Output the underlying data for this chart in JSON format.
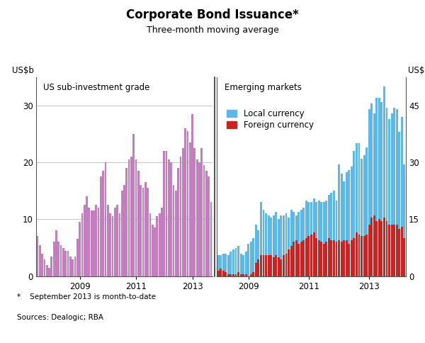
{
  "title": "Corporate Bond Issuance*",
  "subtitle": "Three-month moving average",
  "footnote": "*    September 2013 is month-to-date",
  "sources": "Sources: Dealogic; RBA",
  "left_ylabel": "US$b",
  "right_ylabel": "US$b",
  "left_panel_title": "US sub-investment grade",
  "right_panel_title": "Emerging markets",
  "legend_local": "Local currency",
  "legend_foreign": "Foreign currency",
  "left_ylim": [
    0,
    35
  ],
  "left_yticks": [
    0,
    10,
    20,
    30
  ],
  "right_ylim": [
    0,
    52.5
  ],
  "right_yticks": [
    0,
    15,
    30,
    45
  ],
  "purple_color": "#C47EC0",
  "blue_color": "#5BB8E8",
  "red_color": "#CC2222",
  "bg_color": "#ffffff",
  "left_values": [
    7.0,
    5.5,
    4.0,
    3.0,
    2.0,
    1.5,
    3.5,
    6.0,
    8.0,
    6.0,
    5.5,
    5.0,
    4.5,
    4.5,
    3.5,
    3.0,
    3.5,
    6.5,
    9.5,
    11.0,
    12.5,
    14.0,
    12.0,
    11.5,
    11.5,
    12.5,
    12.0,
    17.5,
    18.5,
    20.0,
    12.5,
    11.0,
    10.5,
    12.0,
    12.5,
    11.0,
    15.0,
    16.0,
    19.0,
    20.5,
    21.0,
    25.0,
    20.5,
    18.5,
    16.0,
    15.5,
    16.5,
    15.5,
    11.0,
    9.0,
    8.5,
    10.5,
    11.0,
    12.0,
    22.0,
    22.0,
    20.5,
    20.0,
    16.0,
    15.0,
    19.0,
    21.0,
    22.5,
    26.0,
    25.5,
    23.5,
    28.5,
    22.5,
    20.5,
    20.0,
    22.5,
    19.5,
    18.5,
    17.5,
    13.0
  ],
  "local_currency_values": [
    5.5,
    5.5,
    6.0,
    6.0,
    5.5,
    6.5,
    7.0,
    7.5,
    8.0,
    6.0,
    5.5,
    6.5,
    8.5,
    9.0,
    10.0,
    13.5,
    12.0,
    19.5,
    17.5,
    16.5,
    16.0,
    15.5,
    16.0,
    17.0,
    15.0,
    16.0,
    16.0,
    16.5,
    15.5,
    17.5,
    17.0,
    16.0,
    17.0,
    17.5,
    18.0,
    20.0,
    19.5,
    19.5,
    20.5,
    19.5,
    20.0,
    19.5,
    19.5,
    20.0,
    21.5,
    22.0,
    22.5,
    20.0,
    29.5,
    27.0,
    25.0,
    27.5,
    28.0,
    29.0,
    33.0,
    35.0,
    35.0,
    31.0,
    32.0,
    34.0,
    44.0,
    45.5,
    43.0,
    47.0,
    47.0,
    46.0,
    50.0,
    44.5,
    41.5,
    43.0,
    44.5,
    44.0,
    38.0,
    42.0,
    29.5
  ],
  "foreign_currency_values": [
    1.5,
    2.0,
    1.5,
    1.0,
    0.5,
    0.5,
    0.5,
    0.5,
    1.0,
    0.5,
    0.5,
    0.5,
    0.0,
    0.5,
    1.0,
    3.5,
    4.5,
    5.5,
    5.5,
    5.5,
    5.5,
    5.5,
    5.0,
    5.5,
    5.0,
    4.5,
    5.5,
    6.0,
    7.0,
    8.0,
    9.0,
    9.5,
    8.5,
    9.0,
    9.5,
    10.0,
    10.5,
    11.0,
    11.5,
    10.0,
    9.5,
    9.0,
    8.5,
    9.0,
    10.0,
    9.5,
    9.5,
    9.0,
    9.5,
    9.0,
    9.5,
    9.5,
    8.5,
    9.5,
    10.0,
    11.5,
    11.0,
    10.5,
    10.5,
    11.0,
    13.5,
    15.5,
    16.0,
    14.5,
    15.0,
    14.5,
    15.5,
    14.5,
    13.5,
    13.5,
    13.5,
    13.5,
    12.5,
    13.0,
    10.0
  ]
}
